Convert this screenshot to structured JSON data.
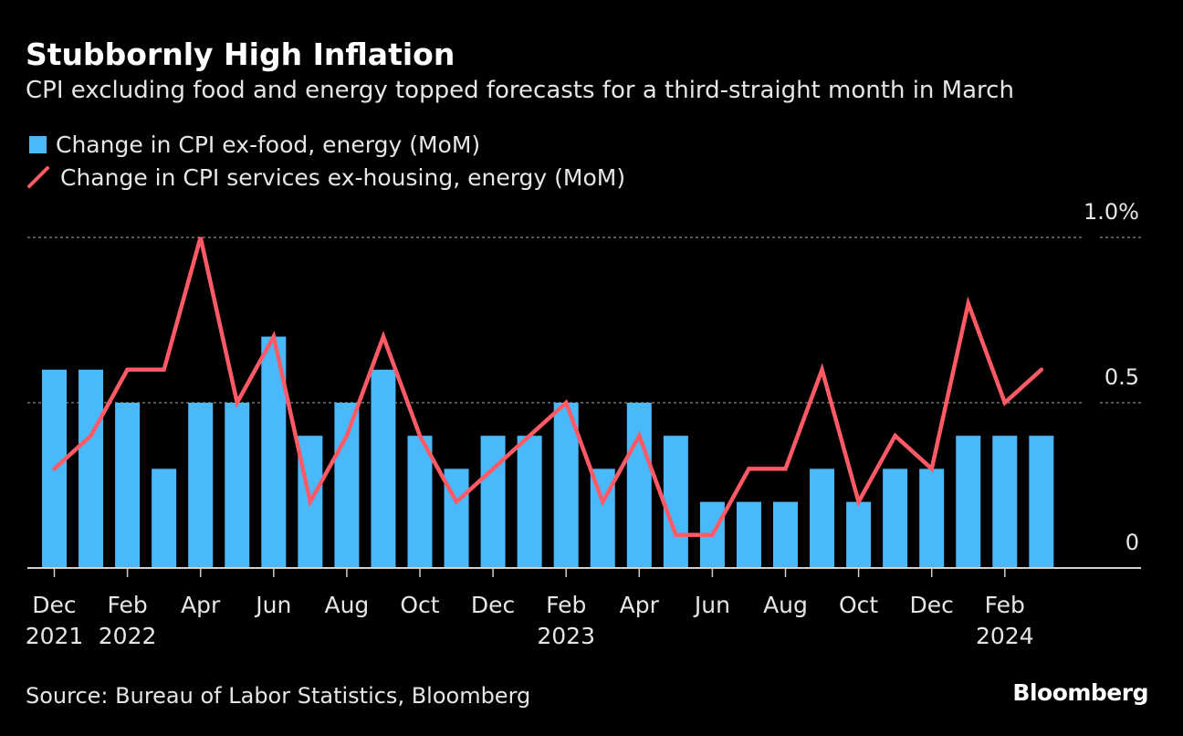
{
  "title": "Stubbornly High Inflation",
  "subtitle": "CPI excluding food and energy topped forecasts for a third-straight month in March",
  "source": "Source: Bureau of Labor Statistics, Bloomberg",
  "logo": "Bloomberg",
  "colors": {
    "bar": "#4ab9fb",
    "line": "#ff5a65",
    "background": "#000000",
    "grid": "#8a8a8a",
    "text": "#e6e6e6"
  },
  "chart_data": {
    "type": "bar",
    "title": "Stubbornly High Inflation",
    "subtitle": "CPI excluding food and energy topped forecasts for a third-straight month in March",
    "categories": [
      "2021-12",
      "2022-01",
      "2022-02",
      "2022-03",
      "2022-04",
      "2022-05",
      "2022-06",
      "2022-07",
      "2022-08",
      "2022-09",
      "2022-10",
      "2022-11",
      "2022-12",
      "2023-01",
      "2023-02",
      "2023-03",
      "2023-04",
      "2023-05",
      "2023-06",
      "2023-07",
      "2023-08",
      "2023-09",
      "2023-10",
      "2023-11",
      "2023-12",
      "2024-01",
      "2024-02",
      "2024-03"
    ],
    "series": [
      {
        "name": "Change in CPI ex-food, energy (MoM)",
        "type": "bar",
        "values": [
          0.6,
          0.6,
          0.5,
          0.3,
          0.5,
          0.5,
          0.7,
          0.4,
          0.5,
          0.6,
          0.4,
          0.3,
          0.4,
          0.4,
          0.5,
          0.3,
          0.5,
          0.4,
          0.2,
          0.2,
          0.2,
          0.3,
          0.2,
          0.3,
          0.3,
          0.4,
          0.4,
          0.4
        ]
      },
      {
        "name": "Change in CPI services ex-housing, energy (MoM)",
        "type": "line",
        "values": [
          0.3,
          0.4,
          0.6,
          0.6,
          1.0,
          0.5,
          0.7,
          0.2,
          0.4,
          0.7,
          0.4,
          0.2,
          0.3,
          0.4,
          0.5,
          0.2,
          0.4,
          0.1,
          0.1,
          0.3,
          0.3,
          0.6,
          0.2,
          0.4,
          0.3,
          0.8,
          0.5,
          0.6
        ]
      }
    ],
    "ylim": [
      0,
      1.0
    ],
    "yticks": [
      {
        "value": 0,
        "label": "0"
      },
      {
        "value": 0.5,
        "label": "0.5"
      },
      {
        "value": 1.0,
        "label": "1.0%"
      }
    ],
    "xticks": [
      {
        "index": 0,
        "label": "Dec",
        "year": "2021"
      },
      {
        "index": 2,
        "label": "Feb",
        "year": "2022"
      },
      {
        "index": 4,
        "label": "Apr",
        "year": ""
      },
      {
        "index": 6,
        "label": "Jun",
        "year": ""
      },
      {
        "index": 8,
        "label": "Aug",
        "year": ""
      },
      {
        "index": 10,
        "label": "Oct",
        "year": ""
      },
      {
        "index": 12,
        "label": "Dec",
        "year": ""
      },
      {
        "index": 14,
        "label": "Feb",
        "year": "2023"
      },
      {
        "index": 16,
        "label": "Apr",
        "year": ""
      },
      {
        "index": 18,
        "label": "Jun",
        "year": ""
      },
      {
        "index": 20,
        "label": "Aug",
        "year": ""
      },
      {
        "index": 22,
        "label": "Oct",
        "year": ""
      },
      {
        "index": 24,
        "label": "Dec",
        "year": ""
      },
      {
        "index": 26,
        "label": "Feb",
        "year": "2024"
      }
    ],
    "grid": true,
    "legend_position": "top-left"
  }
}
